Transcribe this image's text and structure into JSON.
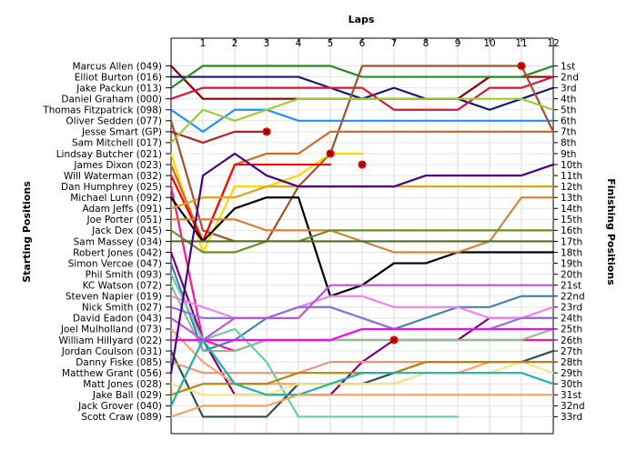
{
  "chart_data": {
    "type": "line",
    "title": "",
    "xlabel": "Laps",
    "ylabel_left": "Starting Positions",
    "ylabel_right": "Finishing Positions",
    "x_ticks": [
      "1",
      "2",
      "3",
      "4",
      "5",
      "6",
      "7",
      "8",
      "9",
      "10",
      "11",
      "12"
    ],
    "xlim": [
      0,
      12
    ],
    "grid": true,
    "starting_positions": [
      "Marcus Allen (049)",
      "Elliot Burton (016)",
      "Jake Packun (013)",
      "Daniel Graham (000)",
      "Thomas Fitzpatrick (098)",
      "Oliver Sedden (077)",
      "Jesse Smart (GP)",
      "Sam Mitchell (017)",
      "Lindsay Butcher (021)",
      "James Dixon (023)",
      "Will Waterman (032)",
      "Dan Humphrey (025)",
      "Michael Lunn (092)",
      "Adam Jeffs (091)",
      "Joe Porter (051)",
      "Jack Dex (045)",
      "Sam Massey (034)",
      "Robert Jones (042)",
      "Simon Vercoe (047)",
      "Phil Smith (093)",
      "KC Watson (072)",
      "Steven Napier (019)",
      "Nick Smith (027)",
      "David Eadon (043)",
      "Joel Mulholland (073)",
      "William Hillyard (022)",
      "Jordan Coulson (031)",
      "Danny Fiske (085)",
      "Matthew Grant (056)",
      "Matt Jones (028)",
      "Jake Ball (029)",
      "Jack Grover (040)",
      "Scott Craw (089)"
    ],
    "finishing_positions": [
      "1st",
      "2nd",
      "3rd",
      "4th",
      "5th",
      "6th",
      "7th",
      "8th",
      "9th",
      "10th",
      "11th",
      "12th",
      "13th",
      "14th",
      "15th",
      "16th",
      "17th",
      "18th",
      "19th",
      "20th",
      "21st",
      "22nd",
      "23rd",
      "24th",
      "25th",
      "26th",
      "27th",
      "28th",
      "29th",
      "30th",
      "31st",
      "32nd",
      "33rd"
    ],
    "series": [
      {
        "color": "#8b0000",
        "values": [
          1,
          4,
          4,
          4,
          4,
          4,
          4,
          4,
          4,
          4,
          2,
          2,
          2
        ]
      },
      {
        "color": "#191970",
        "values": [
          2,
          2,
          2,
          2,
          2,
          3,
          4,
          3,
          4,
          4,
          5,
          4,
          3
        ]
      },
      {
        "color": "#228b22",
        "values": [
          3,
          1,
          1,
          1,
          1,
          1,
          2,
          2,
          2,
          2,
          2,
          2,
          1
        ]
      },
      {
        "color": "#dc143c",
        "values": [
          4,
          3,
          3,
          3,
          3,
          3,
          3,
          5,
          5,
          5,
          3,
          3,
          2
        ]
      },
      {
        "color": "#1e90ff",
        "values": [
          5,
          7,
          5,
          5,
          6,
          6,
          6,
          6,
          6,
          6,
          6,
          6,
          6
        ]
      },
      {
        "color": "#a0522d",
        "values": [
          6,
          16,
          17,
          17,
          12,
          9,
          1,
          1,
          1,
          1,
          1,
          1,
          7
        ]
      },
      {
        "color": "#b22222",
        "values": [
          7,
          8,
          7,
          7
        ]
      },
      {
        "color": "#9acd32",
        "values": [
          8,
          5,
          6,
          5,
          4,
          4,
          4,
          4,
          4,
          4,
          4,
          4,
          5
        ]
      },
      {
        "color": "#ffd700",
        "values": [
          9,
          18,
          12,
          12,
          11,
          9,
          9
        ]
      },
      {
        "color": "#d2691e",
        "values": [
          10,
          17,
          10,
          9,
          9,
          7,
          7,
          7,
          7,
          7,
          7,
          7,
          7
        ]
      },
      {
        "color": "#ff0000",
        "values": [
          11,
          17,
          10,
          10,
          10,
          10
        ]
      },
      {
        "color": "#ff1493",
        "values": [
          12,
          26,
          27,
          26,
          26,
          26,
          26,
          26,
          26,
          26,
          26,
          26,
          26
        ]
      },
      {
        "color": "#000000",
        "values": [
          13,
          17,
          14,
          13,
          13,
          22,
          21,
          19,
          19,
          18,
          18,
          18,
          18
        ]
      },
      {
        "color": "#daa520",
        "values": [
          14,
          13,
          13,
          12,
          12,
          12,
          12,
          12,
          12,
          12,
          12,
          12,
          12
        ]
      },
      {
        "color": "#cd853f",
        "values": [
          15,
          15,
          15,
          16,
          16,
          16,
          17,
          18,
          18,
          18,
          17,
          13,
          13
        ]
      },
      {
        "color": "#6b8e23",
        "values": [
          16,
          18,
          18,
          17,
          17,
          16,
          16,
          16,
          16,
          16,
          16,
          16,
          16
        ]
      },
      {
        "color": "#556b2f",
        "values": [
          17,
          17,
          17,
          17,
          17,
          17,
          17,
          17,
          17,
          17,
          17,
          17,
          17
        ]
      },
      {
        "color": "#800080",
        "values": [
          18,
          26,
          31,
          31,
          31,
          31,
          28,
          26,
          26,
          26,
          24,
          24,
          24
        ]
      },
      {
        "color": "#4682b4",
        "values": [
          19,
          27,
          26,
          24,
          23,
          23,
          24,
          25,
          24,
          23,
          23,
          22,
          22
        ]
      },
      {
        "color": "#66cdaa",
        "values": [
          20,
          26,
          25,
          28,
          33,
          33,
          33,
          33,
          33,
          33
        ]
      },
      {
        "color": "#8fbc8f",
        "values": [
          21,
          27,
          27,
          26,
          26,
          26,
          26,
          26,
          26,
          26,
          26,
          26,
          25
        ]
      },
      {
        "color": "#ee82ee",
        "values": [
          22,
          23,
          24,
          24,
          23,
          22,
          22,
          23,
          23,
          23,
          24,
          24,
          23
        ]
      },
      {
        "color": "#9370db",
        "values": [
          23,
          24,
          24,
          24,
          23,
          23,
          24,
          25,
          25,
          25,
          25,
          24,
          24
        ]
      },
      {
        "color": "#ba55d3",
        "values": [
          24,
          26,
          24,
          24,
          24,
          21,
          21,
          21,
          21,
          21,
          21,
          21,
          21
        ]
      },
      {
        "color": "#ffa07a",
        "values": [
          25,
          28,
          30,
          30,
          30,
          30,
          30,
          30,
          29,
          29,
          28,
          28,
          28
        ]
      },
      {
        "color": "#ff00ff",
        "values": [
          26,
          26,
          26,
          26,
          26,
          26,
          25,
          25,
          25,
          25,
          25,
          25,
          25
        ]
      },
      {
        "color": "#2f4f4f",
        "values": [
          27,
          33,
          33,
          33,
          30,
          30,
          30,
          29,
          28,
          28,
          28,
          28,
          27
        ]
      },
      {
        "color": "#e9967a",
        "values": [
          28,
          29,
          29,
          29,
          29,
          28,
          28,
          28,
          28,
          28,
          28,
          28,
          28
        ]
      },
      {
        "color": "#4b0082",
        "values": [
          29,
          11,
          9,
          11,
          12,
          12,
          12,
          12,
          11,
          11,
          11,
          11,
          10
        ]
      },
      {
        "color": "#f0e68c",
        "values": [
          30,
          31,
          31,
          31,
          30,
          30,
          30,
          30,
          29,
          29,
          29,
          28,
          29
        ]
      },
      {
        "color": "#b8860b",
        "values": [
          31,
          30,
          30,
          30,
          29,
          29,
          29,
          29,
          28,
          28,
          28,
          28,
          28
        ]
      },
      {
        "color": "#20b2aa",
        "values": [
          32,
          26,
          30,
          31,
          31,
          30,
          29,
          29,
          29,
          29,
          29,
          29,
          30
        ]
      },
      {
        "color": "#f4a460",
        "values": [
          33,
          32,
          32,
          32,
          31,
          31,
          31,
          31,
          31,
          31,
          31,
          31,
          31
        ]
      }
    ],
    "retirements": [
      {
        "lap": 3,
        "position": 7,
        "color": "#ff0000"
      },
      {
        "lap": 5,
        "position": 9,
        "color": "#ff0000"
      },
      {
        "lap": 6,
        "position": 10,
        "color": "#ff0000"
      },
      {
        "lap": 7,
        "position": 26,
        "color": "#ff0000"
      },
      {
        "lap": 11,
        "position": 1,
        "color": "#ff0000"
      }
    ]
  }
}
